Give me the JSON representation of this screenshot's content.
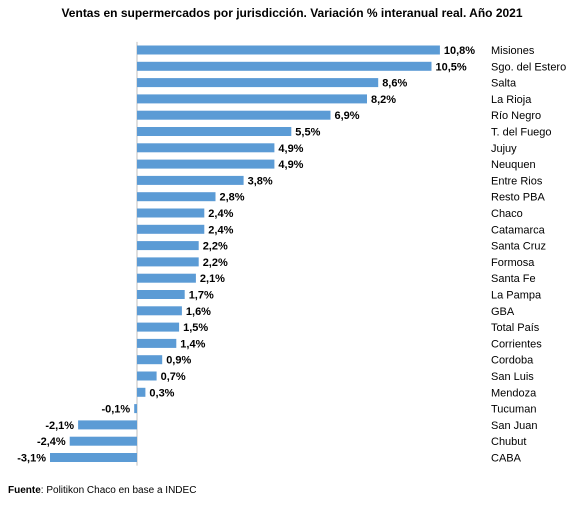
{
  "chart_data": {
    "type": "bar",
    "orientation": "horizontal",
    "title": "Ventas en supermercados por jurisdicción. Variación % interanual real. Año 2021",
    "categories": [
      "Misiones",
      "Sgo. del Estero",
      "Salta",
      "La Rioja",
      "Río Negro",
      "T. del Fuego",
      "Jujuy",
      "Neuquen",
      "Entre Rios",
      "Resto PBA",
      "Chaco",
      "Catamarca",
      "Santa Cruz",
      "Formosa",
      "Santa Fe",
      "La Pampa",
      "GBA",
      "Total País",
      "Corrientes",
      "Cordoba",
      "San Luis",
      "Mendoza",
      "Tucuman",
      "San Juan",
      "Chubut",
      "CABA"
    ],
    "values": [
      10.8,
      10.5,
      8.6,
      8.2,
      6.9,
      5.5,
      4.9,
      4.9,
      3.8,
      2.8,
      2.4,
      2.4,
      2.2,
      2.2,
      2.1,
      1.7,
      1.6,
      1.5,
      1.4,
      0.9,
      0.7,
      0.3,
      -0.1,
      -2.1,
      -2.4,
      -3.1
    ],
    "value_labels": [
      "10,8%",
      "10,5%",
      "8,6%",
      "8,2%",
      "6,9%",
      "5,5%",
      "4,9%",
      "4,9%",
      "3,8%",
      "2,8%",
      "2,4%",
      "2,4%",
      "2,2%",
      "2,2%",
      "2,1%",
      "1,7%",
      "1,6%",
      "1,5%",
      "1,4%",
      "0,9%",
      "0,7%",
      "0,3%",
      "-0,1%",
      "-2,1%",
      "-2,4%",
      "-3,1%"
    ],
    "bar_color": "#5B9BD5",
    "grid": false
  },
  "source": {
    "label": "Fuente",
    "text": ": Politikon Chaco en base a INDEC"
  }
}
